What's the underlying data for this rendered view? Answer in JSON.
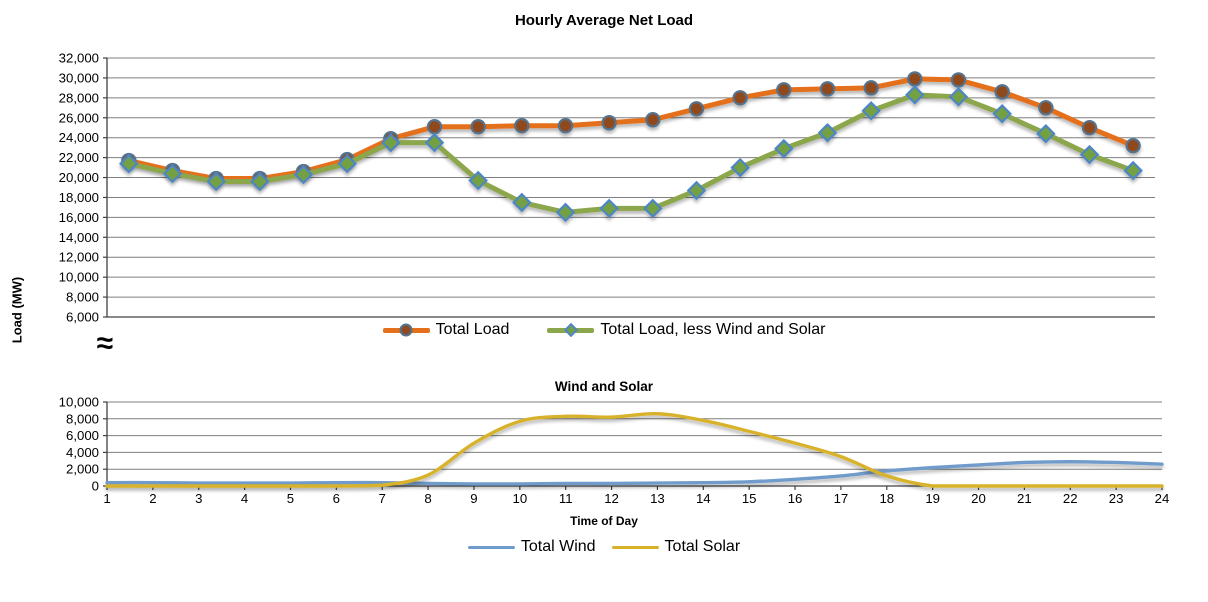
{
  "figure": {
    "axis_break_symbol": "≈",
    "gridline_color": "#7F7F7F",
    "axis_color": "#404040",
    "text_color": "#000000"
  },
  "chart_data": [
    {
      "type": "line",
      "title": "Hourly Average Net Load",
      "ylabel": "Load (MW)",
      "grid": true,
      "legend_position": "below-center",
      "point_alignment": "category-center",
      "x": [
        1,
        2,
        3,
        4,
        5,
        6,
        7,
        8,
        9,
        10,
        11,
        12,
        13,
        14,
        15,
        16,
        17,
        18,
        19,
        20,
        21,
        22,
        23,
        24
      ],
      "ylim": [
        6000,
        32000
      ],
      "y_tick_labels": [
        "32,000",
        "30,000",
        "28,000",
        "26,000",
        "24,000",
        "22,000",
        "20,000",
        "18,000",
        "16,000",
        "14,000",
        "12,000",
        "10,000",
        "8,000",
        "6,000"
      ],
      "series": [
        {
          "name": "Total Load",
          "line_color": "#E4701B",
          "marker": "circle",
          "marker_fill": "#8F4A1F",
          "marker_stroke": "#54738E",
          "values": [
            21700,
            20700,
            19900,
            19900,
            20600,
            21800,
            23900,
            25100,
            25100,
            25200,
            25200,
            25500,
            25800,
            26900,
            28000,
            28800,
            28900,
            29000,
            29900,
            29800,
            28600,
            27000,
            25000,
            23200
          ]
        },
        {
          "name": "Total Load, less Wind and Solar",
          "line_color": "#8BA64B",
          "marker": "diamond",
          "marker_fill": "#73A043",
          "marker_stroke": "#4E86C6",
          "values": [
            21400,
            20400,
            19600,
            19600,
            20300,
            21400,
            23500,
            23500,
            19700,
            17500,
            16500,
            16900,
            16900,
            18700,
            21000,
            22900,
            24500,
            26700,
            28300,
            28100,
            26400,
            24400,
            22300,
            20700
          ]
        }
      ]
    },
    {
      "type": "line",
      "title": "Wind and Solar",
      "xlabel": "Time of Day",
      "grid": true,
      "smooth": true,
      "legend_position": "below-center",
      "point_alignment": "on-ticks",
      "x": [
        1,
        2,
        3,
        4,
        5,
        6,
        7,
        8,
        9,
        10,
        11,
        12,
        13,
        14,
        15,
        16,
        17,
        18,
        19,
        20,
        21,
        22,
        23,
        24
      ],
      "x_tick_labels": [
        "1",
        "2",
        "3",
        "4",
        "5",
        "6",
        "7",
        "8",
        "9",
        "10",
        "11",
        "12",
        "13",
        "14",
        "15",
        "16",
        "17",
        "18",
        "19",
        "20",
        "21",
        "22",
        "23",
        "24"
      ],
      "ylim": [
        0,
        10000
      ],
      "y_tick_labels": [
        "10,000",
        "8,000",
        "6,000",
        "4,000",
        "2,000",
        "0"
      ],
      "series": [
        {
          "name": "Total Wind",
          "line_color": "#6F9BCB",
          "values": [
            400,
            400,
            350,
            350,
            350,
            400,
            400,
            300,
            250,
            250,
            300,
            300,
            350,
            400,
            500,
            800,
            1200,
            1800,
            2200,
            2500,
            2800,
            2900,
            2800,
            2600
          ]
        },
        {
          "name": "Total Solar",
          "line_color": "#D7B229",
          "values": [
            0,
            0,
            0,
            0,
            0,
            0,
            100,
            1300,
            5100,
            7700,
            8300,
            8200,
            8600,
            7800,
            6500,
            5100,
            3500,
            1200,
            0,
            0,
            0,
            0,
            0,
            0
          ]
        }
      ]
    }
  ]
}
